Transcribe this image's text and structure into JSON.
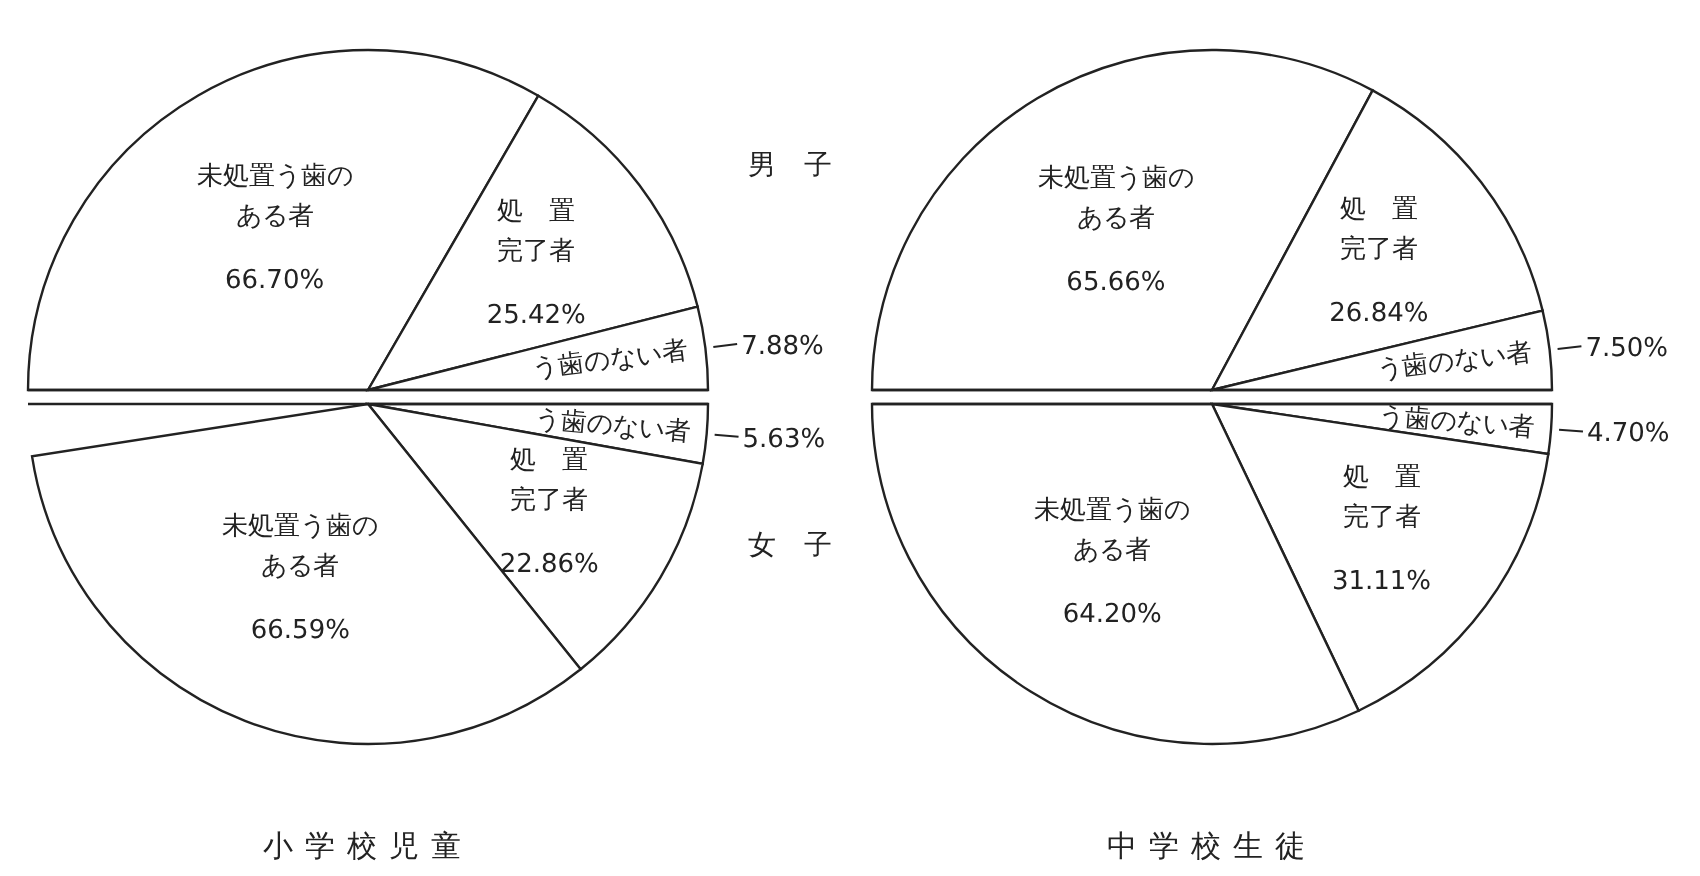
{
  "chart_data": [
    {
      "type": "pie",
      "categories": [
        "未処置う歯のある者",
        "処置完了者",
        "う歯のない者"
      ],
      "values": [
        66.7,
        25.42,
        7.88
      ],
      "value_labels": [
        "66.70%",
        "25.42%",
        "7.88%"
      ],
      "colors": [
        "#ffffff",
        "#ffffff",
        "#ffffff"
      ],
      "annotations": [
        "男　子"
      ]
    },
    {
      "type": "pie",
      "categories": [
        "う歯のない者",
        "処置完了者",
        "未処置う歯のある者"
      ],
      "values": [
        5.63,
        22.86,
        66.59
      ],
      "value_labels": [
        "5.63%",
        "22.86%",
        "66.59%"
      ],
      "colors": [
        "#ffffff",
        "#ffffff",
        "#ffffff"
      ],
      "annotations": [
        "女　子"
      ],
      "xlabel": "小学校児童"
    },
    {
      "type": "pie",
      "categories": [
        "未処置う歯のある者",
        "処置完了者",
        "う歯のない者"
      ],
      "values": [
        65.66,
        26.84,
        7.5
      ],
      "value_labels": [
        "65.66%",
        "26.84%",
        "7.50%"
      ],
      "colors": [
        "#ffffff",
        "#ffffff",
        "#ffffff"
      ]
    },
    {
      "type": "pie",
      "categories": [
        "う歯のない者",
        "処置完了者",
        "未処置う歯のある者"
      ],
      "values": [
        4.7,
        31.11,
        64.2
      ],
      "value_labels": [
        "4.70%",
        "31.11%",
        "64.20%"
      ],
      "colors": [
        "#ffffff",
        "#ffffff",
        "#ffffff"
      ],
      "xlabel": "中学校生徒"
    }
  ]
}
